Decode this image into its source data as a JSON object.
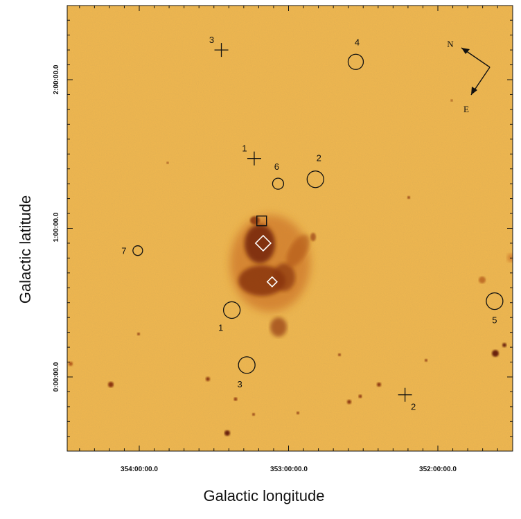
{
  "axes": {
    "x_title": "Galactic longitude",
    "y_title": "Galactic latitude",
    "x_ticks": [
      "354:00:00.0",
      "353:00:00.0",
      "352:00:00.0"
    ],
    "y_ticks": [
      "2:00:00.0",
      "1:00:00.0",
      "0:00:00.0"
    ]
  },
  "compass": {
    "north": "N",
    "east": "E"
  },
  "colors": {
    "background": "#f2b84e",
    "emission_dark": "#7a2a0a",
    "emission_mid": "#b05419",
    "marker_black": "#111111",
    "marker_white": "#ffffff"
  },
  "markers": {
    "crosses": [
      {
        "label": "1",
        "l": 353.23,
        "b": 1.47
      },
      {
        "label": "2",
        "l": 352.22,
        "b": -0.12
      },
      {
        "label": "3",
        "l": 353.45,
        "b": 2.2
      }
    ],
    "circles": [
      {
        "label": "1",
        "l": 353.38,
        "b": 0.45
      },
      {
        "label": "2",
        "l": 352.82,
        "b": 1.33
      },
      {
        "label": "3",
        "l": 353.28,
        "b": 0.08
      },
      {
        "label": "4",
        "l": 352.55,
        "b": 2.12
      },
      {
        "label": "5",
        "l": 351.62,
        "b": 0.51
      },
      {
        "label": "6",
        "l": 353.07,
        "b": 1.3
      },
      {
        "label": "7",
        "l": 354.01,
        "b": 0.85
      }
    ],
    "square": {
      "l": 353.18,
      "b": 1.05
    },
    "diamonds": [
      {
        "l": 353.17,
        "b": 0.9
      },
      {
        "l": 353.11,
        "b": 0.64
      }
    ]
  }
}
